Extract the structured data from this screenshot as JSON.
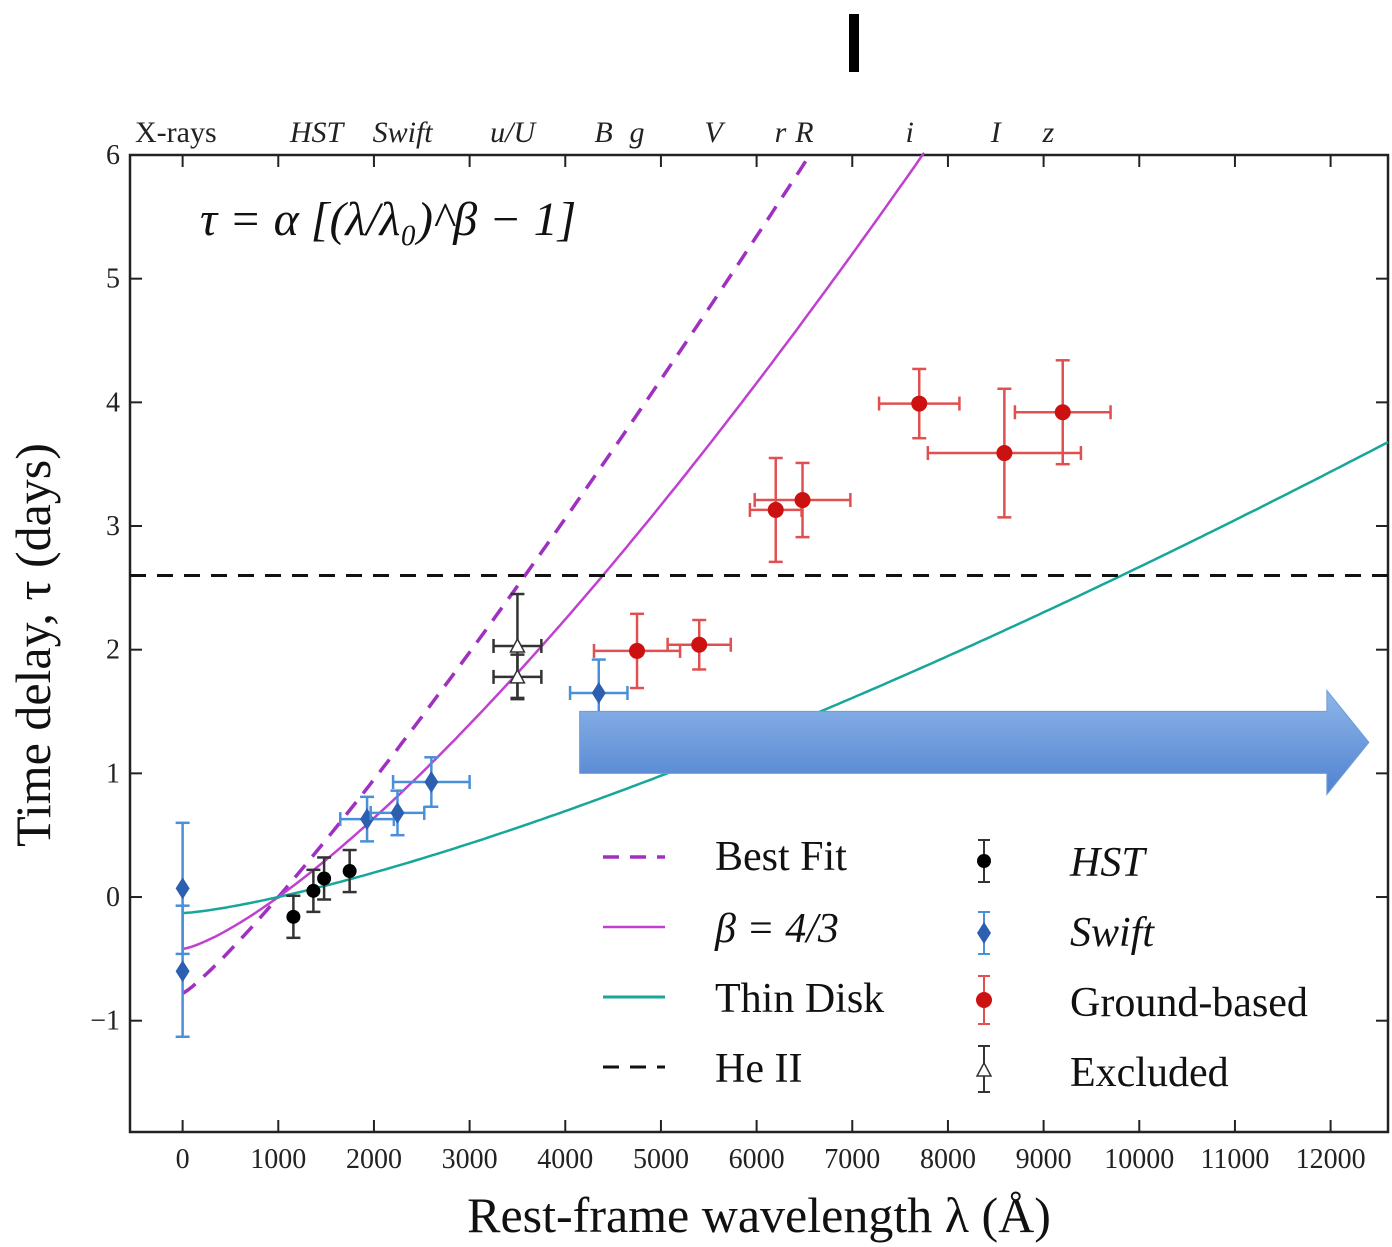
{
  "chart_data": {
    "type": "scatter",
    "xlabel": "Rest-frame wavelength λ (Å)",
    "ylabel": "Time delay,  τ (days)",
    "xlim": [
      -550,
      12600
    ],
    "ylim": [
      -1.9,
      6.0
    ],
    "x_ticks": [
      0,
      1000,
      2000,
      3000,
      4000,
      5000,
      6000,
      7000,
      8000,
      9000,
      10000,
      11000,
      12000
    ],
    "y_ticks": [
      -1,
      0,
      1,
      2,
      3,
      4,
      5,
      6
    ],
    "y_tick_labels": [
      "−1",
      "0",
      "1",
      "2",
      "3",
      "4",
      "5",
      "6"
    ],
    "equation": "τ = α [(λ/λ₀)^β − 1]",
    "band_labels": [
      {
        "text": "X-rays",
        "x": 0,
        "italic": false
      },
      {
        "text": "HST",
        "x": 1400,
        "italic": true
      },
      {
        "text": "Swift",
        "x": 2300,
        "italic": true
      },
      {
        "text": "u/U",
        "x": 3450,
        "italic": true
      },
      {
        "text": "B",
        "x": 4400,
        "italic": true
      },
      {
        "text": "g",
        "x": 4750,
        "italic": true
      },
      {
        "text": "V",
        "x": 5550,
        "italic": true
      },
      {
        "text": "r",
        "x": 6250,
        "italic": true
      },
      {
        "text": "R",
        "x": 6500,
        "italic": true
      },
      {
        "text": "i",
        "x": 7600,
        "italic": true
      },
      {
        "text": "I",
        "x": 8500,
        "italic": true
      },
      {
        "text": "z",
        "x": 9050,
        "italic": true
      }
    ],
    "he_ii_level": 2.6,
    "series": [
      {
        "name": "HST",
        "marker": "circle",
        "color": "#000000",
        "errcolor": "#333333",
        "points": [
          {
            "x": 1158,
            "y": -0.16,
            "xerr": 0,
            "yerr": 0.17
          },
          {
            "x": 1367,
            "y": 0.05,
            "xerr": 0,
            "yerr": 0.17
          },
          {
            "x": 1479,
            "y": 0.15,
            "xerr": 0,
            "yerr": 0.17
          },
          {
            "x": 1746,
            "y": 0.21,
            "xerr": 0,
            "yerr": 0.17
          }
        ]
      },
      {
        "name": "Swift",
        "marker": "diamond",
        "color": "#2d5fb0",
        "errcolor": "#4a90d9",
        "points": [
          {
            "x": 0,
            "y": 0.07,
            "xerr": 0,
            "yerr": 0.53
          },
          {
            "x": 0,
            "y": -0.6,
            "xerr": 0,
            "yerr": 0.53
          },
          {
            "x": 1928,
            "y": 0.63,
            "xerr": 280,
            "yerr": 0.18
          },
          {
            "x": 2246,
            "y": 0.68,
            "xerr": 280,
            "yerr": 0.18
          },
          {
            "x": 2600,
            "y": 0.93,
            "xerr": 400,
            "yerr": 0.2
          },
          {
            "x": 4350,
            "y": 1.65,
            "xerr": 300,
            "yerr": 0.27
          }
        ]
      },
      {
        "name": "Ground-based",
        "marker": "circle",
        "color": "#cc1111",
        "errcolor": "#e05050",
        "points": [
          {
            "x": 4750,
            "y": 1.99,
            "xerr": 450,
            "yerr": 0.3
          },
          {
            "x": 5400,
            "y": 2.04,
            "xerr": 330,
            "yerr": 0.2
          },
          {
            "x": 6200,
            "y": 3.13,
            "xerr": 270,
            "yerr": 0.42
          },
          {
            "x": 6480,
            "y": 3.21,
            "xerr": 500,
            "yerr": 0.3
          },
          {
            "x": 7700,
            "y": 3.99,
            "xerr": 420,
            "yerr": 0.28
          },
          {
            "x": 8590,
            "y": 3.59,
            "xerr": 800,
            "yerr": 0.52
          },
          {
            "x": 9200,
            "y": 3.92,
            "xerr": 500,
            "yerr": 0.42
          }
        ]
      },
      {
        "name": "Excluded",
        "marker": "triangle",
        "color": "#ffffff",
        "errcolor": "#333333",
        "points": [
          {
            "x": 3500,
            "y": 2.03,
            "xerr": 250,
            "yerr": 0.42
          },
          {
            "x": 3500,
            "y": 1.78,
            "xerr": 250,
            "yerr": 0.18
          }
        ]
      }
    ],
    "curves": [
      {
        "name": "Best Fit",
        "style": "dashed",
        "color": "#a030c0",
        "alpha": 0.78,
        "beta": 1.15
      },
      {
        "name": "β = 4/3",
        "style": "solid",
        "color": "#c040d0",
        "alpha": 0.42,
        "beta": 1.333
      },
      {
        "name": "Thin Disk",
        "style": "solid",
        "color": "#17a79a",
        "alpha": 0.13,
        "beta": 1.333
      }
    ],
    "lambda0": 1000,
    "legend": {
      "placement": "bottom-right",
      "line_entries": [
        "Best Fit",
        "β = 4/3",
        "Thin Disk",
        "He II"
      ],
      "marker_entries": [
        "HST",
        "Swift",
        "Ground-based",
        "Excluded"
      ]
    },
    "arrow": {
      "x_start": 4150,
      "x_end": 12400,
      "y": 1.25,
      "color": "#5b8fd6"
    },
    "grid": false
  }
}
